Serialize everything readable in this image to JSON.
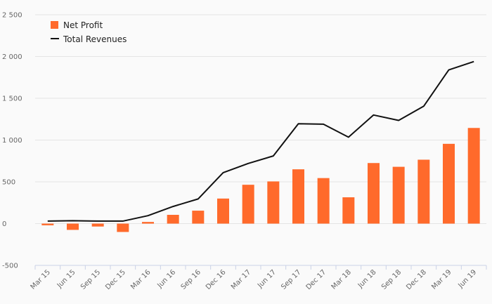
{
  "chart_data": {
    "type": "bar",
    "categories": [
      "Mar 15",
      "Jun 15",
      "Sep 15",
      "Dec 15",
      "Mar 16",
      "Jun 16",
      "Sep 16",
      "Dec 16",
      "Mar 17",
      "Jun 17",
      "Sep 17",
      "Dec 17",
      "Mar 18",
      "Jun 18",
      "Sep 18",
      "Dec 18",
      "Mar 19",
      "Jun 19"
    ],
    "series": [
      {
        "name": "Net Profit",
        "kind": "bar",
        "color": "#ff6a2b",
        "values": [
          -20,
          -75,
          -35,
          -100,
          20,
          105,
          155,
          300,
          465,
          505,
          650,
          545,
          315,
          725,
          680,
          765,
          955,
          1145
        ]
      },
      {
        "name": "Total Revenues",
        "kind": "line",
        "color": "#111111",
        "values": [
          30,
          35,
          30,
          30,
          95,
          205,
          295,
          610,
          720,
          810,
          1195,
          1190,
          1035,
          1300,
          1235,
          1405,
          1840,
          1940
        ]
      }
    ],
    "y_ticks": [
      "2 500",
      "2 000",
      "1 500",
      "1 000",
      "500",
      "0",
      "-500"
    ],
    "y_tick_values": [
      2500,
      2000,
      1500,
      1000,
      500,
      0,
      -500
    ],
    "ylim": [
      -500,
      2500
    ],
    "title": "",
    "xlabel": "",
    "ylabel": "",
    "grid": true,
    "legend": "top-left"
  }
}
